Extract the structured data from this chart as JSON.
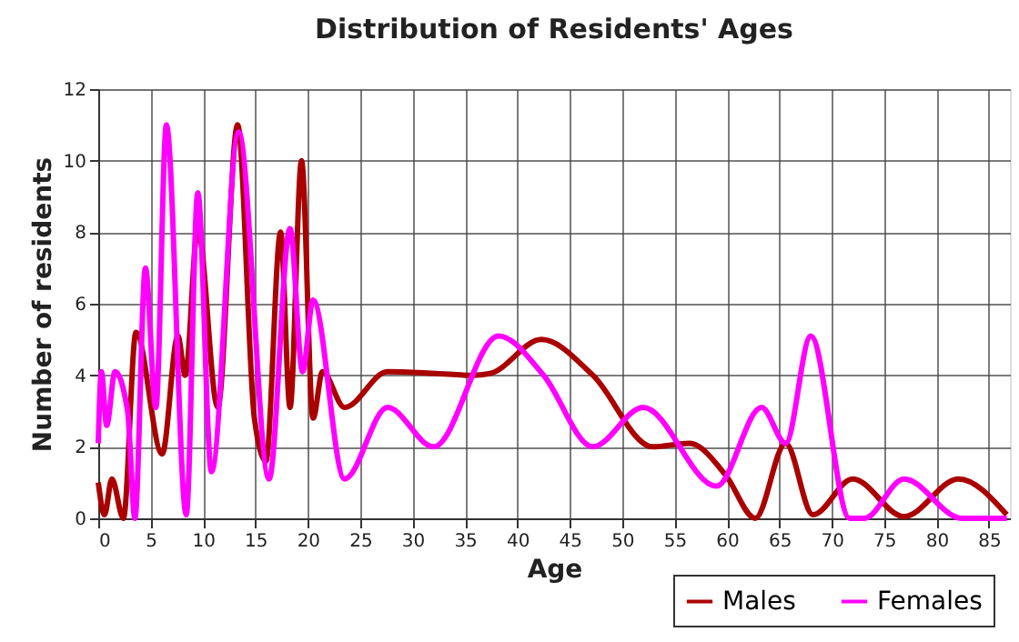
{
  "chart_data": {
    "type": "line",
    "title": "Distribution of Residents' Ages",
    "xlabel": "Age",
    "ylabel": "Number of residents",
    "series": [
      {
        "name": "Males",
        "color": "#aa0000",
        "x": [
          0,
          0.6,
          1.3,
          2.4,
          3.6,
          6.1,
          7.6,
          8.3,
          9.5,
          11.4,
          13.3,
          14.9,
          16.0,
          17.4,
          18.3,
          19.4,
          20.5,
          21.4,
          23.5,
          27.6,
          32.2,
          35.6,
          37.4,
          42.3,
          47.2,
          52.9,
          56.4,
          59.9,
          62.7,
          65.6,
          68.2,
          72.0,
          76.9,
          82.1,
          86.7
        ],
        "values": [
          1.0,
          0.1,
          1.1,
          0,
          5.2,
          1.8,
          5.1,
          4.0,
          8.1,
          3.1,
          11,
          2.8,
          1.6,
          8,
          3.1,
          10,
          2.8,
          4.1,
          3.1,
          4.1,
          4.05,
          4.0,
          4.05,
          5.0,
          4.0,
          2.0,
          2.1,
          1.2,
          0,
          2.1,
          0.1,
          1.1,
          0.05,
          1.1,
          0.1
        ]
      },
      {
        "name": "Females",
        "color": "#ff00ff",
        "x": [
          0,
          0.3,
          0.8,
          1.6,
          2.8,
          3.5,
          4.5,
          5.5,
          6.5,
          8.4,
          9.5,
          10.8,
          13.4,
          16.3,
          18.3,
          19.5,
          20.5,
          23.5,
          27.6,
          32.0,
          38.2,
          42.5,
          47.2,
          52.0,
          59.0,
          63.3,
          65.6,
          68.0,
          71.7,
          73.1,
          76.9,
          82.4,
          86.7
        ],
        "values": [
          2.1,
          4.1,
          2.6,
          4.1,
          3.0,
          0,
          7,
          3.1,
          11,
          0.1,
          9.1,
          1.3,
          10.8,
          1.1,
          8.1,
          4.1,
          6.1,
          1.1,
          3.1,
          2.0,
          5.1,
          4.0,
          2.0,
          3.1,
          0.9,
          3.1,
          2.1,
          5.1,
          0,
          0,
          1.1,
          0,
          0
        ]
      }
    ],
    "xlim": [
      0,
      87
    ],
    "xticks": [
      0,
      5,
      10,
      15,
      20,
      25,
      30,
      35,
      40,
      45,
      50,
      55,
      60,
      65,
      70,
      75,
      80,
      85
    ],
    "ylim": [
      0,
      12
    ],
    "yticks": [
      0,
      2,
      4,
      6,
      8,
      10,
      12
    ],
    "grid": true,
    "legend": "bottom right",
    "marker": "none",
    "line_style": "solid"
  }
}
